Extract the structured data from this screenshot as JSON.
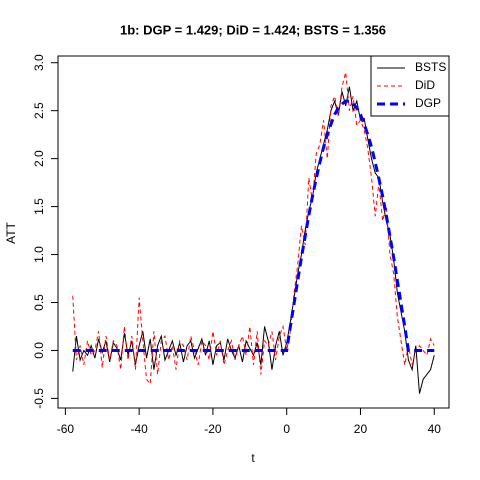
{
  "chart_data": {
    "type": "line",
    "title": "1b: DGP = 1.429; DiD = 1.424;  BSTS = 1.356",
    "xlabel": "t",
    "ylabel": "ATT",
    "x": [
      -58,
      -57,
      -56,
      -55,
      -54,
      -53,
      -52,
      -51,
      -50,
      -49,
      -48,
      -47,
      -46,
      -45,
      -44,
      -43,
      -42,
      -41,
      -40,
      -39,
      -38,
      -37,
      -36,
      -35,
      -34,
      -33,
      -32,
      -31,
      -30,
      -29,
      -28,
      -27,
      -26,
      -25,
      -24,
      -23,
      -22,
      -21,
      -20,
      -19,
      -18,
      -17,
      -16,
      -15,
      -14,
      -13,
      -12,
      -11,
      -10,
      -9,
      -8,
      -7,
      -6,
      -5,
      -4,
      -3,
      -2,
      -1,
      0,
      1,
      2,
      3,
      4,
      5,
      6,
      7,
      8,
      9,
      10,
      11,
      12,
      13,
      14,
      15,
      16,
      17,
      18,
      19,
      20,
      21,
      22,
      23,
      24,
      25,
      26,
      27,
      28,
      29,
      30,
      31,
      32,
      33,
      34,
      35,
      36,
      37,
      38,
      39,
      40
    ],
    "series": [
      {
        "name": "BSTS",
        "color": "#000000",
        "linestyle": "solid",
        "linewidth": 1,
        "values": [
          -0.22,
          0.15,
          -0.1,
          0.0,
          -0.05,
          0.05,
          -0.08,
          0.12,
          -0.02,
          0.1,
          -0.12,
          0.08,
          0.02,
          -0.1,
          0.18,
          -0.05,
          0.1,
          -0.15,
          0.05,
          0.2,
          -0.08,
          0.12,
          -0.2,
          0.05,
          0.15,
          -0.1,
          0.0,
          0.1,
          -0.05,
          0.08,
          -0.12,
          0.05,
          0.1,
          -0.08,
          0.02,
          0.12,
          -0.05,
          0.1,
          -0.15,
          0.05,
          0.08,
          -0.1,
          0.12,
          0.0,
          -0.08,
          0.05,
          -0.12,
          0.1,
          0.02,
          -0.05,
          0.08,
          -0.15,
          0.25,
          0.1,
          -0.2,
          0.05,
          0.2,
          -0.05,
          0.08,
          0.3,
          0.55,
          0.8,
          1.0,
          1.25,
          1.45,
          1.6,
          1.85,
          2.0,
          2.15,
          2.3,
          2.5,
          2.6,
          2.45,
          2.7,
          2.55,
          2.75,
          2.5,
          2.6,
          2.4,
          2.42,
          2.2,
          2.0,
          1.85,
          1.8,
          1.55,
          1.35,
          1.2,
          0.95,
          0.6,
          0.4,
          0.2,
          -0.1,
          -0.2,
          0.05,
          -0.45,
          -0.3,
          -0.25,
          -0.2,
          -0.05
        ]
      },
      {
        "name": "DiD",
        "color": "#ff0000",
        "linestyle": "dashed",
        "linewidth": 1,
        "values": [
          0.57,
          -0.1,
          0.05,
          -0.15,
          0.1,
          -0.05,
          0.0,
          0.2,
          -0.18,
          0.15,
          -0.1,
          0.1,
          0.05,
          -0.2,
          0.25,
          -0.1,
          0.15,
          -0.2,
          0.55,
          0.1,
          -0.3,
          -0.35,
          0.2,
          -0.25,
          0.1,
          0.15,
          -0.1,
          0.05,
          -0.2,
          0.1,
          0.05,
          -0.1,
          0.15,
          0.0,
          -0.15,
          0.1,
          0.05,
          -0.1,
          0.2,
          -0.05,
          0.1,
          -0.15,
          0.0,
          0.1,
          -0.1,
          0.05,
          0.15,
          -0.05,
          0.25,
          -0.15,
          0.2,
          -0.25,
          0.1,
          0.05,
          0.2,
          -0.1,
          0.15,
          0.25,
          0.0,
          0.2,
          0.6,
          0.9,
          1.3,
          1.1,
          1.8,
          1.55,
          2.05,
          2.15,
          2.4,
          2.0,
          2.55,
          2.65,
          2.45,
          2.75,
          2.9,
          2.5,
          2.65,
          2.35,
          2.4,
          2.3,
          2.1,
          1.8,
          1.4,
          1.75,
          1.35,
          1.5,
          1.0,
          0.8,
          0.35,
          0.1,
          -0.15,
          0.05,
          -0.15,
          0.0,
          0.05,
          0.0,
          -0.05,
          0.12,
          0.05
        ]
      },
      {
        "name": "DGP",
        "color": "#0000ff",
        "linestyle": "longdash",
        "linewidth": 3,
        "values": [
          0,
          0,
          0,
          0,
          0,
          0,
          0,
          0,
          0,
          0,
          0,
          0,
          0,
          0,
          0,
          0,
          0,
          0,
          0,
          0,
          0,
          0,
          0,
          0,
          0,
          0,
          0,
          0,
          0,
          0,
          0,
          0,
          0,
          0,
          0,
          0,
          0,
          0,
          0,
          0,
          0,
          0,
          0,
          0,
          0,
          0,
          0,
          0,
          0,
          0,
          0,
          0,
          0,
          0,
          0,
          0,
          0,
          0,
          0,
          0.25,
          0.49,
          0.73,
          0.97,
          1.19,
          1.41,
          1.61,
          1.79,
          1.96,
          2.12,
          2.25,
          2.36,
          2.46,
          2.53,
          2.57,
          2.6,
          2.6,
          2.57,
          2.53,
          2.46,
          2.36,
          2.25,
          2.12,
          1.96,
          1.79,
          1.61,
          1.41,
          1.19,
          0.97,
          0.73,
          0.49,
          0.25,
          0,
          0,
          0,
          0,
          0,
          0,
          0,
          0
        ]
      }
    ],
    "xlim": [
      -62,
      44
    ],
    "ylim": [
      -0.6,
      3.07
    ],
    "xticks": [
      -60,
      -40,
      -20,
      0,
      20,
      40
    ],
    "yticks": [
      -0.5,
      {
        "value": 0,
        "label": "0.0"
      },
      0.5,
      {
        "value": 1,
        "label": "1.0"
      },
      1.5,
      {
        "value": 2,
        "label": "2.0"
      },
      2.5,
      {
        "value": 3,
        "label": "3.0"
      }
    ],
    "legend": "top-right",
    "grid": false
  }
}
